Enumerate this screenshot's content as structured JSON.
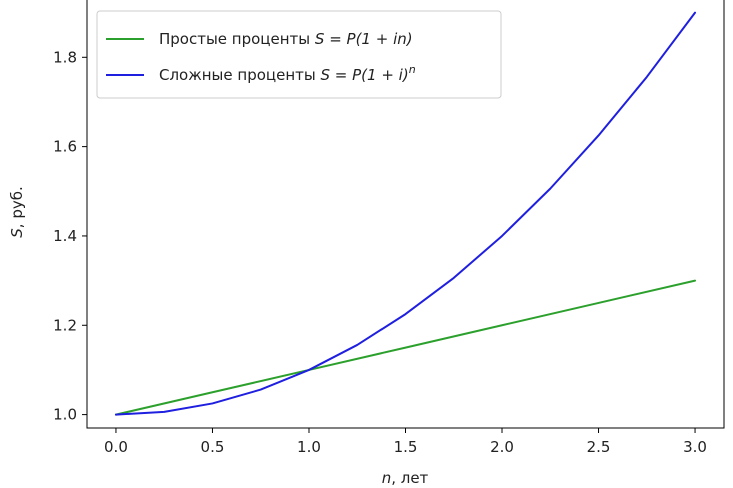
{
  "chart_data": {
    "type": "line",
    "title": "",
    "xlabel_var": "n",
    "xlabel_rest": ", лет",
    "ylabel_var": "S",
    "ylabel_rest": ", руб.",
    "xlim": [
      -0.15,
      3.15
    ],
    "ylim": [
      0.97,
      1.935
    ],
    "xticks": [
      0.0,
      0.5,
      1.0,
      1.5,
      2.0,
      2.5,
      3.0
    ],
    "xtick_labels": [
      "0.0",
      "0.5",
      "1.0",
      "1.5",
      "2.0",
      "2.5",
      "3.0"
    ],
    "yticks": [
      1.0,
      1.2,
      1.4,
      1.6,
      1.8
    ],
    "ytick_labels": [
      "1.0",
      "1.2",
      "1.4",
      "1.6",
      "1.8"
    ],
    "grid": false,
    "legend_position": "top-left",
    "series": [
      {
        "name": "Простые проценты S = P(1 + in)",
        "legend_plain": "Простые проценты ",
        "legend_formula": "S = P(1 + in)",
        "color": "#2ca02c",
        "x": [
          0.0,
          0.5,
          1.0,
          1.5,
          2.0,
          2.5,
          3.0
        ],
        "y": [
          1.0,
          1.05,
          1.1,
          1.15,
          1.2,
          1.25,
          1.3
        ]
      },
      {
        "name": "Сложные проценты S = P(1 + i)^n",
        "legend_plain": "Сложные проценты ",
        "legend_formula": "S = P(1 + i)",
        "legend_sup": "n",
        "color": "#1f1fe0",
        "x": [
          0.0,
          0.25,
          0.5,
          0.75,
          1.0,
          1.25,
          1.5,
          1.75,
          2.0,
          2.25,
          2.5,
          2.75,
          3.0
        ],
        "y": [
          1.0,
          1.006,
          1.025,
          1.056,
          1.1,
          1.156,
          1.225,
          1.306,
          1.4,
          1.506,
          1.625,
          1.756,
          1.9
        ]
      }
    ]
  }
}
